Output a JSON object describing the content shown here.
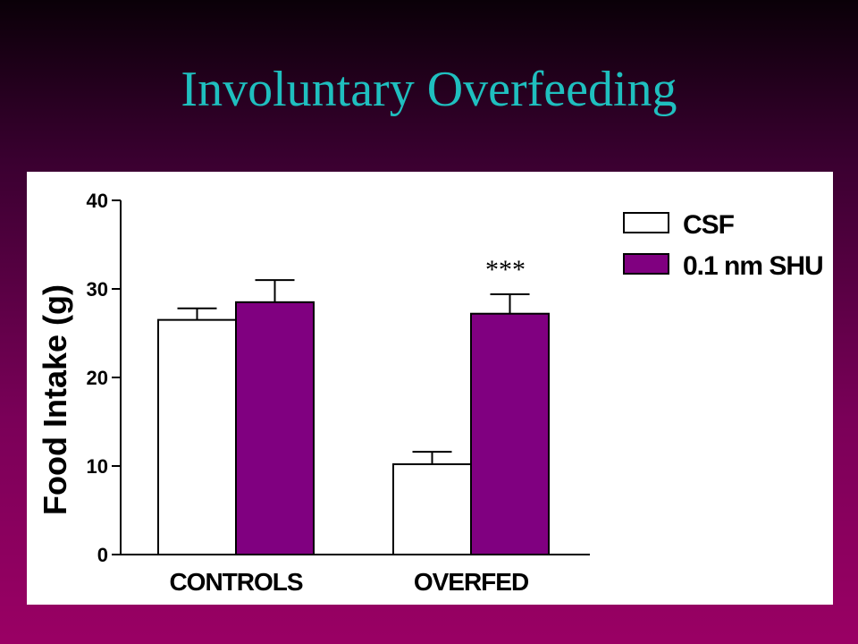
{
  "slide": {
    "title": "Involuntary Overfeeding"
  },
  "chart_data": {
    "type": "bar",
    "categories": [
      "CONTROLS",
      "OVERFED"
    ],
    "series": [
      {
        "name": "CSF",
        "values": [
          26.5,
          10.2
        ],
        "errors": [
          1.3,
          1.4
        ],
        "color": "#ffffff"
      },
      {
        "name": "0.1 nm SHU",
        "values": [
          28.5,
          27.2
        ],
        "errors": [
          2.5,
          2.2
        ],
        "color": "#800080"
      }
    ],
    "ylabel": "Food Intake (g)",
    "xlabel": "",
    "ylim": [
      0,
      40
    ],
    "yticks": [
      0,
      10,
      20,
      30,
      40
    ],
    "annotations": [
      {
        "text": "***",
        "category": "OVERFED",
        "series": "0.1 nm SHU"
      }
    ],
    "legend": "top-right",
    "grid": false
  },
  "colors": {
    "title": "#1fbfbf",
    "panel": "#ffffff"
  }
}
